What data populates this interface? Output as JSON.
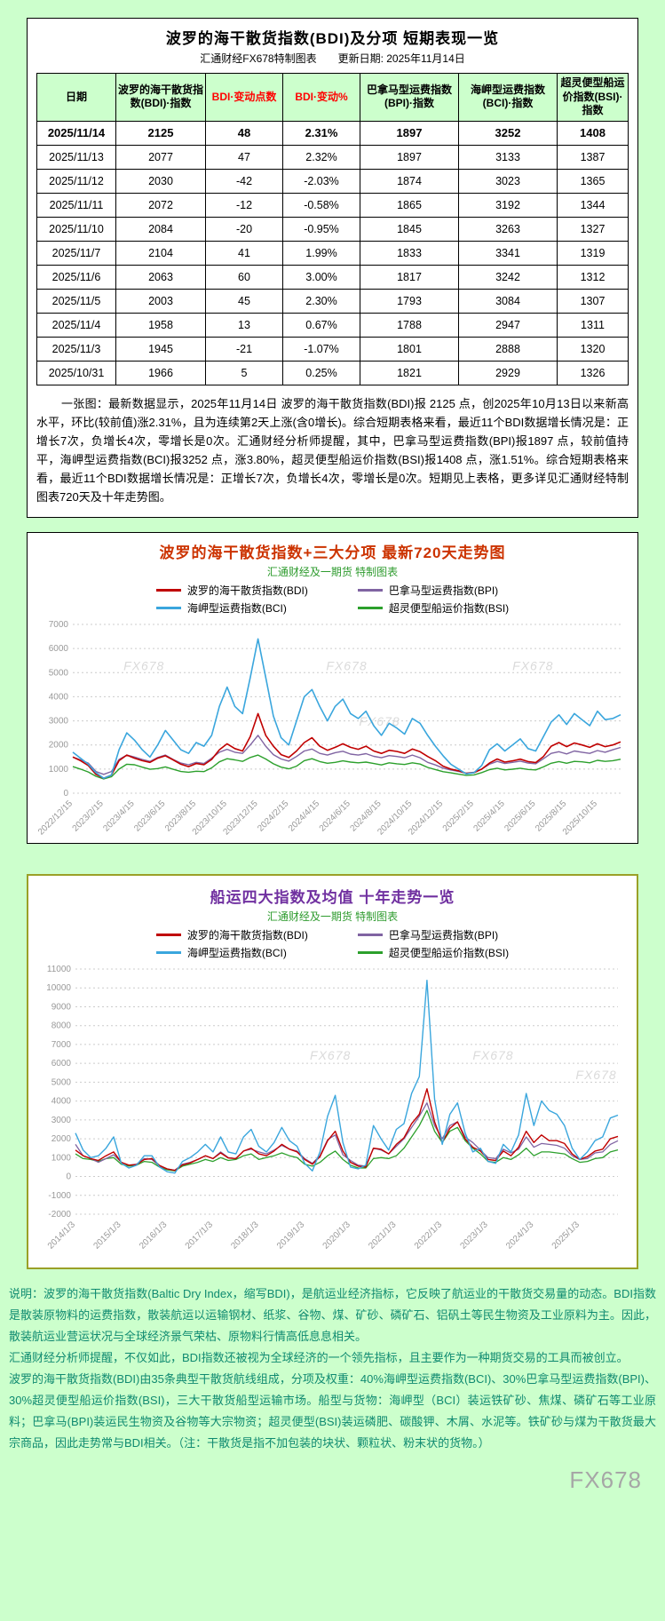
{
  "watermark": "FX678",
  "report": {
    "title": "波罗的海干散货指数(BDI)及分项  短期表现一览",
    "subtitle": "汇通财经FX678特制图表　　更新日期: 2025年11月14日",
    "summary": "一张图：最新数据显示，2025年11月14日 波罗的海干散货指数(BDI)报 2125 点，创2025年10月13日以来新高水平，环比(较前值)涨2.31%，且为连续第2天上涨(含0增长)。综合短期表格来看，最近11个BDI数据增长情况是：正增长7次，负增长4次，零增长是0次。汇通财经分析师提醒，其中，巴拿马型运费指数(BPI)报1897 点，较前值持平，海岬型运费指数(BCI)报3252 点，涨3.80%，超灵便型船运价指数(BSI)报1408 点，涨1.51%。综合短期表格来看，最近11个BDI数据增长情况是：正增长7次，负增长4次，零增长是0次。短期见上表格，更多详见汇通财经特制图表720天及十年走势图。"
  },
  "table": {
    "headers": [
      "日期",
      "波罗的海干散货指数(BDI)·指数",
      "BDI·变动点数",
      "BDI·变动%",
      "巴拿马型运费指数(BPI)·指数",
      "海岬型运费指数(BCI)·指数",
      "超灵便型船运价指数(BSI)·指数"
    ],
    "rows": [
      [
        "2025/11/14",
        "2125",
        "48",
        "2.31%",
        "1897",
        "3252",
        "1408"
      ],
      [
        "2025/11/13",
        "2077",
        "47",
        "2.32%",
        "1897",
        "3133",
        "1387"
      ],
      [
        "2025/11/12",
        "2030",
        "-42",
        "-2.03%",
        "1874",
        "3023",
        "1365"
      ],
      [
        "2025/11/11",
        "2072",
        "-12",
        "-0.58%",
        "1865",
        "3192",
        "1344"
      ],
      [
        "2025/11/10",
        "2084",
        "-20",
        "-0.95%",
        "1845",
        "3263",
        "1327"
      ],
      [
        "2025/11/7",
        "2104",
        "41",
        "1.99%",
        "1833",
        "3341",
        "1319"
      ],
      [
        "2025/11/6",
        "2063",
        "60",
        "3.00%",
        "1817",
        "3242",
        "1312"
      ],
      [
        "2025/11/5",
        "2003",
        "45",
        "2.30%",
        "1793",
        "3084",
        "1307"
      ],
      [
        "2025/11/4",
        "1958",
        "13",
        "0.67%",
        "1788",
        "2947",
        "1311"
      ],
      [
        "2025/11/3",
        "1945",
        "-21",
        "-1.07%",
        "1801",
        "2888",
        "1320"
      ],
      [
        "2025/10/31",
        "1966",
        "5",
        "0.25%",
        "1821",
        "2929",
        "1326"
      ]
    ]
  },
  "chart_data": [
    {
      "type": "line",
      "title": "波罗的海干散货指数+三大分项  最新720天走势图",
      "subtitle": "汇通财经及一期货 特制图表",
      "title_color": "#cc3300",
      "xlabel": "",
      "ylabel": "",
      "ylim": [
        0,
        7000
      ],
      "ystep": 1000,
      "grid": true,
      "legend_position": "top",
      "watermark_text": "FX678",
      "watermarks": [
        [
          0.13,
          0.27
        ],
        [
          0.5,
          0.27
        ],
        [
          0.84,
          0.27
        ],
        [
          0.56,
          0.6
        ]
      ],
      "x_tick_idx": [
        0,
        4,
        8,
        12,
        16,
        20,
        24,
        28,
        32,
        36,
        40,
        44,
        48,
        52,
        56,
        60,
        64,
        68
      ],
      "x_tick_labels": [
        "2022/12/15",
        "2023/2/15",
        "2023/4/15",
        "2023/6/15",
        "2023/8/15",
        "2023/10/15",
        "2023/12/15",
        "2024/2/15",
        "2024/4/15",
        "2024/6/15",
        "2024/8/15",
        "2024/10/15",
        "2024/12/15",
        "2025/2/15",
        "2025/4/15",
        "2025/6/15",
        "2025/8/15",
        "2025/10/15"
      ],
      "draw_order": [
        3,
        1,
        0,
        2
      ],
      "series": [
        {
          "key": "bdi",
          "name": "波罗的海干散货指数(BDI)",
          "color": "#c00000",
          "width": 1.6,
          "values": [
            1500,
            1350,
            1150,
            780,
            620,
            750,
            1350,
            1580,
            1450,
            1350,
            1280,
            1450,
            1550,
            1380,
            1200,
            1100,
            1230,
            1180,
            1400,
            1800,
            2050,
            1850,
            1750,
            2350,
            3300,
            2400,
            1950,
            1600,
            1480,
            1750,
            2100,
            2300,
            1950,
            1780,
            1900,
            2050,
            1900,
            1820,
            1950,
            1750,
            1650,
            1780,
            1730,
            1650,
            1830,
            1720,
            1520,
            1350,
            1120,
            1000,
            930,
            820,
            850,
            1000,
            1250,
            1420,
            1290,
            1340,
            1410,
            1310,
            1270,
            1520,
            1950,
            2100,
            1930,
            2080,
            2000,
            1900,
            2050,
            1930,
            2000,
            2125
          ]
        },
        {
          "key": "bpi",
          "name": "巴拿马型运费指数(BPI)",
          "color": "#8064a2",
          "width": 1.4,
          "values": [
            1500,
            1380,
            1250,
            900,
            780,
            900,
            1400,
            1580,
            1500,
            1400,
            1320,
            1480,
            1580,
            1400,
            1250,
            1180,
            1280,
            1230,
            1450,
            1700,
            1820,
            1700,
            1650,
            2000,
            2400,
            1950,
            1600,
            1420,
            1330,
            1520,
            1750,
            1830,
            1650,
            1580,
            1680,
            1740,
            1620,
            1580,
            1640,
            1530,
            1470,
            1560,
            1520,
            1470,
            1580,
            1470,
            1280,
            1170,
            1040,
            960,
            900,
            830,
            870,
            1000,
            1200,
            1320,
            1230,
            1280,
            1330,
            1250,
            1220,
            1430,
            1650,
            1720,
            1630,
            1750,
            1700,
            1650,
            1770,
            1700,
            1800,
            1897
          ]
        },
        {
          "key": "bci",
          "name": "海岬型运费指数(BCI)",
          "color": "#3aa6dd",
          "width": 1.6,
          "values": [
            1700,
            1450,
            1200,
            850,
            620,
            750,
            1800,
            2500,
            2200,
            1800,
            1500,
            2000,
            2600,
            2200,
            1800,
            1650,
            2100,
            1950,
            2400,
            3600,
            4400,
            3600,
            3300,
            4800,
            6400,
            4800,
            3200,
            2300,
            2000,
            3000,
            4000,
            4300,
            3600,
            3000,
            3600,
            3900,
            3300,
            3100,
            3400,
            2800,
            2400,
            2900,
            2700,
            2450,
            3100,
            2900,
            2400,
            1950,
            1550,
            1200,
            1000,
            800,
            850,
            1150,
            1800,
            2050,
            1750,
            2000,
            2250,
            1850,
            1750,
            2350,
            2950,
            3250,
            2850,
            3300,
            3050,
            2800,
            3400,
            3050,
            3100,
            3252
          ]
        },
        {
          "key": "bsi",
          "name": "超灵便型船运价指数(BSI)",
          "color": "#2ca02c",
          "width": 1.4,
          "values": [
            1100,
            1000,
            880,
            700,
            590,
            680,
            1000,
            1200,
            1180,
            1080,
            990,
            1020,
            1090,
            990,
            900,
            870,
            910,
            895,
            1050,
            1300,
            1430,
            1380,
            1320,
            1480,
            1580,
            1420,
            1220,
            1080,
            1010,
            1120,
            1350,
            1430,
            1310,
            1240,
            1280,
            1340,
            1290,
            1260,
            1290,
            1230,
            1170,
            1260,
            1220,
            1190,
            1260,
            1210,
            1070,
            980,
            890,
            845,
            790,
            740,
            760,
            855,
            975,
            1035,
            965,
            995,
            1035,
            985,
            965,
            1090,
            1240,
            1310,
            1240,
            1320,
            1300,
            1260,
            1365,
            1320,
            1350,
            1408
          ]
        }
      ]
    },
    {
      "type": "line",
      "title": "船运四大指数及均值 十年走势一览",
      "subtitle": "汇通财经及一期货 特制图表",
      "title_color": "#7030a0",
      "xlabel": "",
      "ylabel": "",
      "ylim": [
        -2000,
        11000
      ],
      "ystep": 1000,
      "grid": true,
      "legend_position": "top",
      "watermark_text": "FX678",
      "watermarks": [
        [
          0.47,
          0.37
        ],
        [
          0.77,
          0.37
        ],
        [
          0.96,
          0.45
        ]
      ],
      "x_tick_idx": [
        0,
        6,
        12,
        18,
        24,
        30,
        36,
        42,
        48,
        54,
        60,
        66
      ],
      "x_tick_labels": [
        "2014/1/3",
        "2015/1/3",
        "2016/1/3",
        "2017/1/3",
        "2018/1/3",
        "2019/1/3",
        "2020/1/3",
        "2021/1/3",
        "2022/1/3",
        "2023/1/3",
        "2024/1/3",
        "2025/1/3"
      ],
      "draw_order": [
        3,
        1,
        0,
        2
      ],
      "series": [
        {
          "key": "bdi",
          "name": "波罗的海干散货指数(BDI)",
          "color": "#c00000",
          "width": 1.4,
          "values": [
            1400,
            1100,
            950,
            850,
            1100,
            1300,
            750,
            600,
            630,
            900,
            950,
            580,
            400,
            320,
            610,
            720,
            900,
            1100,
            950,
            1250,
            980,
            950,
            1350,
            1500,
            1200,
            1100,
            1350,
            1700,
            1450,
            1300,
            900,
            650,
            1050,
            1900,
            2400,
            1350,
            750,
            550,
            500,
            1500,
            1450,
            1200,
            1700,
            2050,
            2800,
            3300,
            4650,
            2900,
            1800,
            2550,
            2900,
            2000,
            1550,
            1350,
            900,
            850,
            1350,
            1100,
            1550,
            2400,
            1800,
            2200,
            1900,
            1900,
            1750,
            1200,
            900,
            1050,
            1350,
            1450,
            2000,
            2125
          ]
        },
        {
          "key": "bpi",
          "name": "巴拿马型运费指数(BPI)",
          "color": "#8064a2",
          "width": 1.3,
          "values": [
            1700,
            1100,
            950,
            750,
            950,
            1150,
            750,
            600,
            650,
            950,
            900,
            550,
            400,
            330,
            650,
            750,
            900,
            1100,
            950,
            1300,
            1000,
            950,
            1350,
            1450,
            1300,
            1200,
            1400,
            1650,
            1450,
            1350,
            950,
            700,
            1100,
            1950,
            2200,
            1150,
            850,
            600,
            550,
            1500,
            1400,
            1200,
            1600,
            2000,
            2600,
            3200,
            3900,
            2700,
            2000,
            2700,
            2900,
            2100,
            1800,
            1400,
            1000,
            950,
            1450,
            1250,
            1450,
            2100,
            1550,
            1750,
            1700,
            1650,
            1500,
            1100,
            900,
            950,
            1250,
            1300,
            1700,
            1897
          ]
        },
        {
          "key": "bci",
          "name": "海岬型运费指数(BCI)",
          "color": "#3aa6dd",
          "width": 1.4,
          "values": [
            2300,
            1400,
            1000,
            1100,
            1500,
            2100,
            700,
            450,
            600,
            1100,
            1100,
            500,
            250,
            180,
            800,
            1000,
            1300,
            1700,
            1300,
            2100,
            1300,
            1200,
            2100,
            2500,
            1600,
            1300,
            1800,
            2600,
            1900,
            1600,
            700,
            300,
            1300,
            3200,
            4300,
            1800,
            500,
            400,
            600,
            2700,
            2000,
            1400,
            2500,
            2800,
            4400,
            5300,
            10400,
            4100,
            1700,
            3300,
            3900,
            2300,
            1300,
            1500,
            800,
            700,
            1700,
            1300,
            2200,
            4400,
            2700,
            4000,
            3500,
            3300,
            2700,
            1500,
            900,
            1300,
            1900,
            2100,
            3100,
            3252
          ]
        },
        {
          "key": "bsi",
          "name": "超灵便型船运价指数(BSI)",
          "color": "#2ca02c",
          "width": 1.3,
          "values": [
            1200,
            950,
            900,
            800,
            950,
            1000,
            650,
            550,
            600,
            800,
            750,
            500,
            350,
            300,
            550,
            650,
            750,
            900,
            800,
            1000,
            850,
            900,
            1100,
            1200,
            900,
            1000,
            1100,
            1250,
            1100,
            1000,
            650,
            550,
            750,
            1100,
            1350,
            900,
            600,
            450,
            450,
            950,
            1000,
            950,
            1100,
            1500,
            2100,
            2700,
            3500,
            2400,
            1800,
            2400,
            2600,
            1900,
            1500,
            1200,
            800,
            750,
            1000,
            900,
            1150,
            1500,
            1100,
            1300,
            1300,
            1250,
            1200,
            950,
            750,
            800,
            950,
            1000,
            1300,
            1408
          ]
        }
      ]
    }
  ],
  "notes": [
    "说明：波罗的海干散货指数(Baltic Dry Index，缩写BDI)，是航运业经济指标，它反映了航运业的干散货交易量的动态。BDI指数是散装原物料的运费指数，散装航运以运输钢材、纸浆、谷物、煤、矿砂、磷矿石、铝矾土等民生物资及工业原料为主。因此，散装航运业营运状况与全球经济景气荣枯、原物料行情高低息息相关。",
    "汇通财经分析师提醒，不仅如此，BDI指数还被视为全球经济的一个领先指标，且主要作为一种期货交易的工具而被创立。",
    "波罗的海干散货指数(BDI)由35条典型干散货航线组成，分项及权重：40%海岬型运费指数(BCI)、30%巴拿马型运费指数(BPI)、30%超灵便型船运价指数(BSI)，三大干散货船型运输市场。船型与货物：海岬型（BCI）装运铁矿砂、焦煤、磷矿石等工业原料；巴拿马(BPI)装运民生物资及谷物等大宗物资；超灵便型(BSI)装运磷肥、碳酸钾、木屑、水泥等。铁矿砂与煤为干散货最大宗商品，因此走势常与BDI相关。（注：干散货是指不加包装的块状、颗粒状、粉末状的货物。）"
  ]
}
